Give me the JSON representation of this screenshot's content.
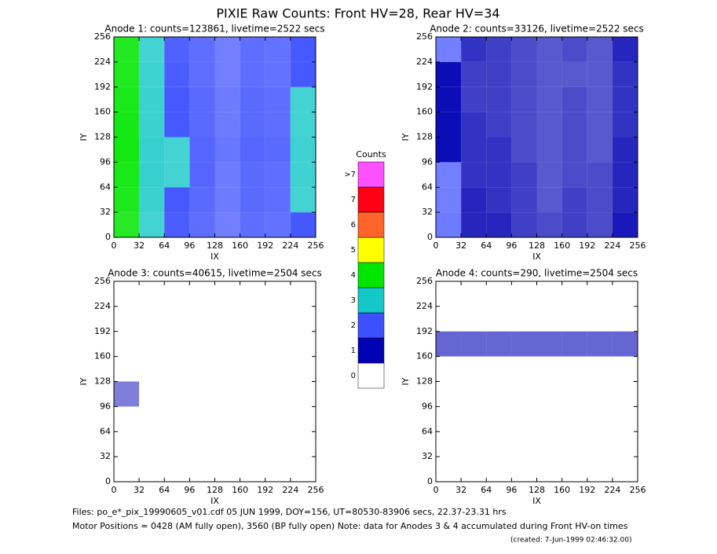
{
  "title": "PIXIE Raw Counts:  Front HV=28, Rear HV=34",
  "colorbar": {
    "title": "Counts",
    "labels": [
      "0",
      "1",
      "2",
      "3",
      "4",
      "5",
      "6",
      "7",
      ">7"
    ],
    "colors": [
      "#ffffff",
      "#0000b4",
      "#3c50ff",
      "#14c8c8",
      "#00e600",
      "#ffff00",
      "#ff6428",
      "#ff0014",
      "#ff50ff"
    ]
  },
  "footer": {
    "files": "Files: po_e*_pix_19990605_v01.cdf    05 JUN 1999, DOY=156, UT=80530-83906 secs, 22.37-23.31 hrs",
    "motor": "Motor Positions = 0428 (AM fully open), 3560 (BP fully open)    Note: data for Anodes 3 & 4 accumulated during Front HV-on times",
    "created": "(created:  7-Jun-1999 02:46:32.00)"
  },
  "chart_data": [
    {
      "type": "heatmap",
      "title": "Anode 1: counts=123861, livetime=2522 secs",
      "xlabel": "IX",
      "ylabel": "IY",
      "xlim": [
        0,
        256
      ],
      "ylim": [
        0,
        256
      ],
      "xticks": [
        0,
        32,
        64,
        96,
        128,
        160,
        192,
        224,
        256
      ],
      "yticks": [
        0,
        32,
        64,
        96,
        128,
        160,
        192,
        224,
        256
      ],
      "xbins": [
        0,
        32,
        64,
        96,
        128,
        160,
        192,
        224,
        256
      ],
      "ybins": [
        0,
        32,
        64,
        96,
        128,
        160,
        192,
        224,
        256
      ],
      "values": [
        [
          3.2,
          2.1,
          1.9,
          1.5,
          1.1,
          1.5,
          1.4,
          2.0
        ],
        [
          3.5,
          2.3,
          2.0,
          1.6,
          1.2,
          1.6,
          1.5,
          2.1
        ],
        [
          3.6,
          2.4,
          2.1,
          1.7,
          1.2,
          1.6,
          1.5,
          2.2
        ],
        [
          3.8,
          2.4,
          2.1,
          1.7,
          1.3,
          1.7,
          1.6,
          2.2
        ],
        [
          3.7,
          2.3,
          2.0,
          1.6,
          1.2,
          1.6,
          1.5,
          2.1
        ],
        [
          3.6,
          2.3,
          2.0,
          1.6,
          1.2,
          1.6,
          1.5,
          2.1
        ],
        [
          3.4,
          2.2,
          1.9,
          1.5,
          1.1,
          1.5,
          1.4,
          2.0
        ],
        [
          3.3,
          2.1,
          1.8,
          1.5,
          1.1,
          1.5,
          1.4,
          2.0
        ]
      ]
    },
    {
      "type": "heatmap",
      "title": "Anode 2: counts=33126, livetime=2522 secs",
      "xlabel": "IX",
      "ylabel": "IY",
      "xlim": [
        0,
        256
      ],
      "ylim": [
        0,
        256
      ],
      "xticks": [
        0,
        32,
        64,
        96,
        128,
        160,
        192,
        224,
        256
      ],
      "yticks": [
        0,
        32,
        64,
        96,
        128,
        160,
        192,
        224,
        256
      ],
      "xbins": [
        0,
        32,
        64,
        96,
        128,
        160,
        192,
        224,
        256
      ],
      "ybins": [
        0,
        32,
        64,
        96,
        128,
        160,
        192,
        224,
        256
      ],
      "values": [
        [
          1.2,
          0.8,
          0.8,
          0.6,
          0.5,
          0.6,
          0.5,
          0.9
        ],
        [
          1.1,
          0.8,
          0.7,
          0.6,
          0.4,
          0.6,
          0.5,
          0.8
        ],
        [
          1.1,
          0.7,
          0.7,
          0.6,
          0.4,
          0.5,
          0.5,
          0.8
        ],
        [
          1.0,
          0.7,
          0.7,
          0.5,
          0.4,
          0.5,
          0.4,
          0.8
        ],
        [
          1.0,
          0.7,
          0.6,
          0.5,
          0.4,
          0.5,
          0.4,
          0.7
        ],
        [
          1.0,
          0.6,
          0.6,
          0.5,
          0.4,
          0.5,
          0.4,
          0.7
        ],
        [
          1.0,
          0.6,
          0.6,
          0.5,
          0.4,
          0.4,
          0.4,
          0.7
        ],
        [
          1.1,
          0.7,
          0.6,
          0.5,
          0.4,
          0.5,
          0.4,
          0.8
        ]
      ]
    },
    {
      "type": "heatmap",
      "title": "Anode 3: counts=40615, livetime=2504 secs",
      "xlabel": "IX",
      "ylabel": "IY",
      "xlim": [
        0,
        256
      ],
      "ylim": [
        0,
        256
      ],
      "xticks": [
        0,
        32,
        64,
        96,
        128,
        160,
        192,
        224,
        256
      ],
      "yticks": [
        0,
        32,
        64,
        96,
        128,
        160,
        192,
        224,
        256
      ],
      "xbins": [
        0,
        32,
        64,
        96,
        128,
        160,
        192,
        224,
        256
      ],
      "ybins": [
        0,
        32,
        64,
        96,
        128,
        160,
        192,
        224,
        256
      ],
      "values": [
        [
          0,
          0,
          0,
          0,
          0,
          0,
          0,
          0
        ],
        [
          0,
          0,
          0,
          0,
          0,
          0,
          0,
          0
        ],
        [
          0,
          0,
          0,
          0,
          0,
          0,
          0,
          0
        ],
        [
          0.1,
          0,
          0,
          0,
          0,
          0,
          0,
          0
        ],
        [
          0,
          0,
          0,
          0,
          0,
          0,
          0,
          0
        ],
        [
          0,
          0,
          0,
          0,
          0,
          0,
          0,
          0
        ],
        [
          0,
          0,
          0,
          0,
          0,
          0,
          0,
          0
        ],
        [
          0,
          0,
          0,
          0,
          0,
          0,
          0,
          0
        ]
      ]
    },
    {
      "type": "heatmap",
      "title": "Anode 4: counts=290, livetime=2504 secs",
      "xlabel": "IX",
      "ylabel": "IY",
      "xlim": [
        0,
        256
      ],
      "ylim": [
        0,
        256
      ],
      "xticks": [
        0,
        32,
        64,
        96,
        128,
        160,
        192,
        224,
        256
      ],
      "yticks": [
        0,
        32,
        64,
        96,
        128,
        160,
        192,
        224,
        256
      ],
      "xbins": [
        0,
        32,
        64,
        96,
        128,
        160,
        192,
        224,
        256
      ],
      "ybins": [
        0,
        32,
        64,
        96,
        128,
        160,
        192,
        224,
        256
      ],
      "values": [
        [
          0,
          0,
          0,
          0,
          0,
          0,
          0,
          0
        ],
        [
          0,
          0,
          0,
          0,
          0,
          0,
          0,
          0
        ],
        [
          0,
          0,
          0,
          0,
          0,
          0,
          0,
          0
        ],
        [
          0,
          0,
          0,
          0,
          0,
          0,
          0,
          0
        ],
        [
          0,
          0,
          0,
          0,
          0,
          0,
          0,
          0
        ],
        [
          0.3,
          0.3,
          0.3,
          0.3,
          0.3,
          0.3,
          0.3,
          0.3
        ],
        [
          0,
          0,
          0,
          0,
          0,
          0,
          0,
          0
        ],
        [
          0,
          0,
          0,
          0,
          0,
          0,
          0,
          0
        ]
      ]
    }
  ]
}
